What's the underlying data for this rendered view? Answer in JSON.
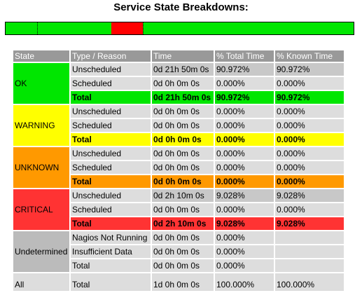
{
  "title": "Service State Breakdowns:",
  "state_bar": {
    "ok_fraction": 0.90972,
    "critical_fraction": 0.09028
  },
  "headers": [
    "State",
    "Type / Reason",
    "Time",
    "% Total Time",
    "% Known Time"
  ],
  "ok": {
    "state": "OK",
    "rows": [
      [
        "Unscheduled",
        "0d 21h 50m 0s",
        "90.972%",
        "90.972%"
      ],
      [
        "Scheduled",
        "0d 0h 0m 0s",
        "0.000%",
        "0.000%"
      ],
      [
        "Total",
        "0d 21h 50m 0s",
        "90.972%",
        "90.972%"
      ]
    ]
  },
  "warning": {
    "state": "WARNING",
    "rows": [
      [
        "Unscheduled",
        "0d 0h 0m 0s",
        "0.000%",
        "0.000%"
      ],
      [
        "Scheduled",
        "0d 0h 0m 0s",
        "0.000%",
        "0.000%"
      ],
      [
        "Total",
        "0d 0h 0m 0s",
        "0.000%",
        "0.000%"
      ]
    ]
  },
  "unknown": {
    "state": "UNKNOWN",
    "rows": [
      [
        "Unscheduled",
        "0d 0h 0m 0s",
        "0.000%",
        "0.000%"
      ],
      [
        "Scheduled",
        "0d 0h 0m 0s",
        "0.000%",
        "0.000%"
      ],
      [
        "Total",
        "0d 0h 0m 0s",
        "0.000%",
        "0.000%"
      ]
    ]
  },
  "critical": {
    "state": "CRITICAL",
    "rows": [
      [
        "Unscheduled",
        "0d 2h 10m 0s",
        "9.028%",
        "9.028%"
      ],
      [
        "Scheduled",
        "0d 0h 0m 0s",
        "0.000%",
        "0.000%"
      ],
      [
        "Total",
        "0d 2h 10m 0s",
        "9.028%",
        "9.028%"
      ]
    ]
  },
  "undetermined": {
    "state": "Undetermined",
    "rows": [
      [
        "Nagios Not Running",
        "0d 0h 0m 0s",
        "0.000%"
      ],
      [
        "Insufficient Data",
        "0d 0h 0m 0s",
        "0.000%"
      ],
      [
        "Total",
        "0d 0h 0m 0s",
        "0.000%"
      ]
    ]
  },
  "all": {
    "state": "All",
    "rows": [
      [
        "Total",
        "1d 0h 0m 0s",
        "100.000%",
        "100.000%"
      ]
    ]
  },
  "colors": {
    "ok": "#00e600",
    "warning": "#ffff00",
    "unknown": "#ff9900",
    "critical": "#ff3333"
  }
}
